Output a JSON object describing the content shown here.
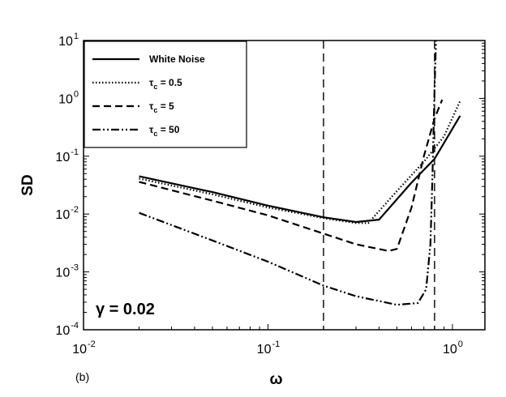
{
  "chart_data": {
    "type": "line",
    "xlabel": "ω",
    "ylabel": "SD",
    "xscale": "log",
    "yscale": "log",
    "xlim": [
      0.01,
      1.5
    ],
    "ylim": [
      0.0001,
      10
    ],
    "x_ticks": [
      {
        "base": "10",
        "exp": "-2"
      },
      {
        "base": "10",
        "exp": "-1"
      },
      {
        "base": "10",
        "exp": "0"
      }
    ],
    "y_ticks": [
      {
        "base": "10",
        "exp": "-4"
      },
      {
        "base": "10",
        "exp": "-3"
      },
      {
        "base": "10",
        "exp": "-2"
      },
      {
        "base": "10",
        "exp": "-1"
      },
      {
        "base": "10",
        "exp": "0"
      },
      {
        "base": "10",
        "exp": "1"
      }
    ],
    "legend_position": "top-left",
    "grid": false,
    "annotation": "γ = 0.02",
    "panel_label": "(b)",
    "vertical_lines": [
      0.2,
      0.8
    ],
    "series": [
      {
        "name": "White Noise",
        "style": "solid",
        "legend_prefix": "",
        "legend_sub": "",
        "legend_value": "",
        "x": [
          0.02,
          0.05,
          0.1,
          0.2,
          0.3,
          0.4,
          0.6,
          0.8,
          1.1
        ],
        "y": [
          0.045,
          0.024,
          0.014,
          0.0088,
          0.0073,
          0.008,
          0.035,
          0.09,
          0.5
        ]
      },
      {
        "name": "τc = 0.5",
        "style": "dotted",
        "legend_prefix": "τ",
        "legend_sub": "c",
        "legend_value": " = 0.5",
        "x": [
          0.02,
          0.05,
          0.1,
          0.2,
          0.3,
          0.35,
          0.5,
          0.7,
          0.9,
          1.1
        ],
        "y": [
          0.041,
          0.022,
          0.013,
          0.0085,
          0.007,
          0.007,
          0.025,
          0.08,
          0.22,
          0.9
        ]
      },
      {
        "name": "τc = 5",
        "style": "dashed",
        "legend_prefix": "τ",
        "legend_sub": "c",
        "legend_value": " = 5",
        "x": [
          0.02,
          0.05,
          0.1,
          0.2,
          0.3,
          0.45,
          0.5,
          0.6,
          0.7,
          0.8,
          0.88
        ],
        "y": [
          0.036,
          0.017,
          0.0095,
          0.0046,
          0.003,
          0.0023,
          0.0025,
          0.013,
          0.1,
          0.45,
          0.95
        ]
      },
      {
        "name": "τc = 50",
        "style": "dashdotdot",
        "legend_prefix": "τ",
        "legend_sub": "c",
        "legend_value": " = 50",
        "x": [
          0.02,
          0.05,
          0.1,
          0.2,
          0.3,
          0.5,
          0.65,
          0.72,
          0.76,
          0.78,
          0.8,
          0.815
        ],
        "y": [
          0.0105,
          0.0035,
          0.0015,
          0.00058,
          0.00038,
          0.00027,
          0.00029,
          0.0005,
          0.003,
          0.05,
          1.5,
          10
        ]
      }
    ]
  }
}
